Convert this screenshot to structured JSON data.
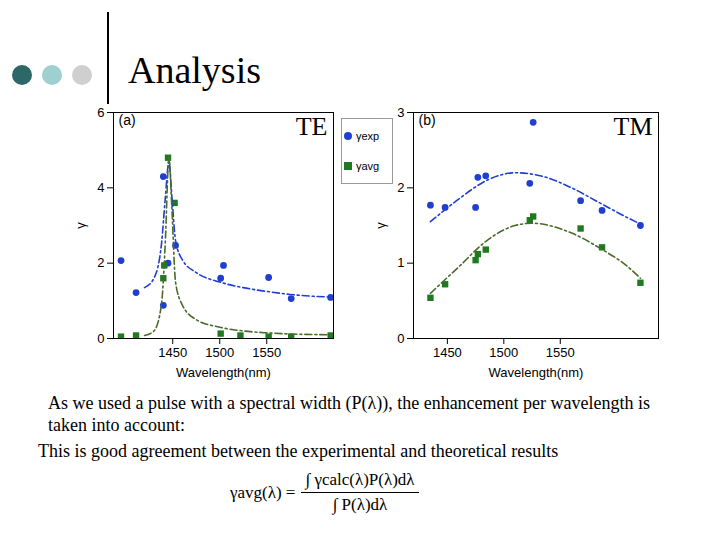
{
  "slide": {
    "title": "Analysis",
    "body": "As we used a pulse with a spectral width (P(λ)), the enhancement per wavelength is taken into account:",
    "conclusion": "This is good agreement between the experimental and theoretical results",
    "formula": {
      "lhs": "γavg(λ) =",
      "numerator": "∫ γcalc(λ)P(λ)dλ",
      "denominator": "∫ P(λ)dλ"
    }
  },
  "chart_data": [
    {
      "type": "scatter",
      "panel_label": "(a)",
      "mode_label": "TE",
      "x_label": "Wavelength(nm)",
      "y_label": "γ",
      "xlim": [
        1387,
        1621
      ],
      "xticks": [
        1450,
        1500,
        1550
      ],
      "ylim": [
        0,
        6
      ],
      "yticks": [
        0,
        2,
        4,
        6
      ],
      "grid": false,
      "series": [
        {
          "name": "γexp",
          "type": "scatter",
          "marker": "circle",
          "color": "#1f3fd0",
          "x": [
            1395,
            1411,
            1440,
            1440,
            1445,
            1453,
            1501,
            1504,
            1552,
            1576,
            1618
          ],
          "values": [
            2.07,
            1.22,
            4.3,
            0.88,
            2.0,
            2.47,
            1.6,
            1.94,
            1.62,
            1.06,
            1.09
          ]
        },
        {
          "name": "γavg",
          "type": "scatter",
          "marker": "square",
          "color": "#1f7a1f",
          "x": [
            1395,
            1411,
            1440,
            1441,
            1445,
            1452,
            1501,
            1522,
            1552,
            1576,
            1618
          ],
          "values": [
            0.05,
            0.08,
            1.6,
            1.94,
            4.8,
            3.6,
            0.13,
            0.08,
            0.05,
            0.05,
            0.08
          ]
        },
        {
          "type": "line",
          "line_style": "dashdot",
          "color": "#1f3fd0",
          "x": [
            1420,
            1430,
            1438,
            1442,
            1446,
            1449,
            1453,
            1460,
            1475,
            1500,
            1525,
            1550,
            1575,
            1600,
            1618
          ],
          "values": [
            1.35,
            1.6,
            2.5,
            3.7,
            4.7,
            3.8,
            2.6,
            2.1,
            1.75,
            1.5,
            1.35,
            1.25,
            1.17,
            1.12,
            1.1
          ]
        },
        {
          "type": "line",
          "line_style": "dashdot",
          "color": "#4a6b2a",
          "x": [
            1420,
            1430,
            1438,
            1442,
            1446,
            1449,
            1453,
            1460,
            1475,
            1500,
            1525,
            1550,
            1575,
            1618
          ],
          "values": [
            0.08,
            0.2,
            0.9,
            2.5,
            4.8,
            3.5,
            1.5,
            0.9,
            0.5,
            0.3,
            0.2,
            0.15,
            0.12,
            0.1
          ]
        }
      ]
    },
    {
      "type": "scatter",
      "panel_label": "(b)",
      "mode_label": "TM",
      "x_label": "Wavelength(nm)",
      "y_label": "γ",
      "xlim": [
        1420,
        1637
      ],
      "xticks": [
        1450,
        1500,
        1550
      ],
      "ylim": [
        0,
        3
      ],
      "yticks": [
        0,
        1,
        2,
        3
      ],
      "grid": false,
      "series": [
        {
          "name": "γexp",
          "type": "scatter",
          "marker": "circle",
          "color": "#1f3fd0",
          "x": [
            1435,
            1448,
            1475,
            1477,
            1484,
            1523,
            1526,
            1568,
            1587,
            1621
          ],
          "values": [
            1.77,
            1.74,
            1.74,
            2.14,
            2.16,
            2.06,
            2.87,
            1.83,
            1.7,
            1.5
          ]
        },
        {
          "name": "γavg",
          "type": "scatter",
          "marker": "square",
          "color": "#1f7a1f",
          "x": [
            1435,
            1448,
            1475,
            1477,
            1484,
            1523,
            1526,
            1568,
            1587,
            1621
          ],
          "values": [
            0.54,
            0.72,
            1.04,
            1.12,
            1.18,
            1.57,
            1.62,
            1.46,
            1.21,
            0.74
          ]
        },
        {
          "type": "line",
          "line_style": "dashdot",
          "color": "#1f3fd0",
          "x": [
            1435,
            1460,
            1485,
            1510,
            1535,
            1560,
            1585,
            1610,
            1621
          ],
          "values": [
            1.55,
            1.85,
            2.1,
            2.2,
            2.15,
            2.0,
            1.8,
            1.6,
            1.52
          ]
        },
        {
          "type": "line",
          "line_style": "dashdot",
          "color": "#4a6b2a",
          "x": [
            1435,
            1460,
            1485,
            1510,
            1525,
            1560,
            1585,
            1610,
            1621
          ],
          "values": [
            0.6,
            0.95,
            1.3,
            1.5,
            1.53,
            1.4,
            1.2,
            0.95,
            0.8
          ]
        }
      ]
    }
  ]
}
